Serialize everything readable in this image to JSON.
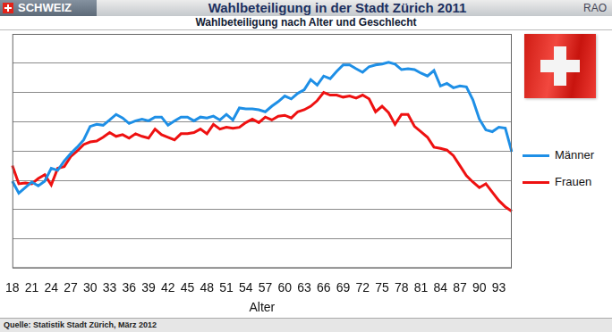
{
  "chart_data": {
    "type": "line",
    "header": "SCHWEIZ",
    "title": "Wahlbeteiligung in der Stadt Zürich 2011",
    "header_right": "RAO",
    "subtitle": "Wahlbeteiligung nach Alter und Geschlecht",
    "source": "Quelle: Statistik Stadt Zürich, März 2012",
    "x_label": "Alter",
    "categories": [
      "18",
      null,
      null,
      "21",
      null,
      null,
      "24",
      null,
      null,
      "27",
      null,
      null,
      "30",
      null,
      null,
      "33",
      null,
      null,
      "36",
      null,
      null,
      "39",
      null,
      null,
      "42",
      null,
      null,
      "45",
      null,
      null,
      "48",
      null,
      null,
      "51",
      null,
      null,
      "54",
      null,
      null,
      "57",
      null,
      null,
      "60",
      null,
      null,
      "63",
      null,
      null,
      "66",
      null,
      null,
      "69",
      null,
      null,
      "72",
      null,
      null,
      "75",
      null,
      null,
      "78",
      null,
      null,
      "81",
      null,
      null,
      "84",
      null,
      null,
      "87",
      null,
      null,
      "90",
      null,
      null,
      "93",
      null,
      null
    ],
    "series": [
      {
        "name": "Männer",
        "color": "#1e8fe6",
        "values": [
          29.7,
          25.6,
          27.5,
          29.4,
          28.1,
          29.7,
          34.1,
          33.4,
          36.6,
          39.1,
          41.3,
          43.8,
          48.4,
          49.1,
          48.8,
          50.6,
          52.5,
          51.3,
          49.4,
          50.3,
          50.9,
          50.3,
          51.6,
          51.6,
          48.8,
          50.3,
          51.6,
          51.6,
          50.3,
          51.6,
          51.3,
          51.9,
          50.6,
          52.5,
          50.6,
          54.7,
          54.4,
          54.4,
          54.1,
          53.4,
          55.3,
          56.9,
          58.8,
          57.8,
          59.7,
          60.9,
          64.4,
          62.5,
          65.6,
          64.7,
          67.2,
          69.4,
          69.4,
          68.1,
          66.9,
          68.8,
          69.4,
          69.7,
          70.3,
          69.7,
          67.8,
          68.1,
          67.8,
          66.6,
          65.6,
          67.5,
          62.2,
          63.1,
          61.6,
          62.2,
          61.9,
          57.5,
          50.9,
          47.2,
          46.6,
          48.1,
          47.8,
          39.7
        ]
      },
      {
        "name": "Frauen",
        "color": "#ee1111",
        "values": [
          35.0,
          28.8,
          29.1,
          28.8,
          30.6,
          31.9,
          28.4,
          34.1,
          34.7,
          38.1,
          40.0,
          42.2,
          43.1,
          43.4,
          44.7,
          46.3,
          45.0,
          45.6,
          44.4,
          45.9,
          45.0,
          44.4,
          47.5,
          45.6,
          44.7,
          43.8,
          45.9,
          45.9,
          46.3,
          47.5,
          45.9,
          49.1,
          47.5,
          48.1,
          47.8,
          48.1,
          49.7,
          50.9,
          49.7,
          51.6,
          50.6,
          51.9,
          52.2,
          51.3,
          53.4,
          54.1,
          55.3,
          57.2,
          60.0,
          59.1,
          59.1,
          58.4,
          58.8,
          58.1,
          59.1,
          57.8,
          53.4,
          55.3,
          53.1,
          49.1,
          52.5,
          52.5,
          48.4,
          46.6,
          44.7,
          41.3,
          40.9,
          40.3,
          38.4,
          35.0,
          31.6,
          29.4,
          27.5,
          28.8,
          25.9,
          23.1,
          20.9,
          19.4
        ]
      }
    ],
    "ylim": [
      0,
      80
    ],
    "yticks": [
      0,
      10,
      20,
      30,
      40,
      50,
      60,
      70,
      80
    ],
    "grid": true,
    "legend": "right",
    "tick_labels": "x"
  }
}
